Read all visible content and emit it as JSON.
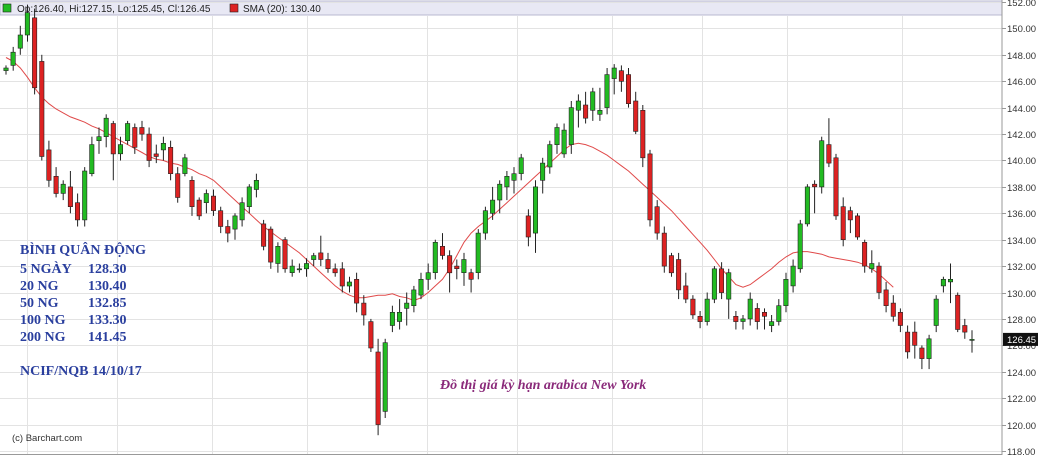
{
  "legend": {
    "ohlc_label": "Op:126.40, Hi:127.15, Lo:125.45, Cl:126.45",
    "sma_label": "SMA (20): 130.40",
    "candle_color": "#22bb22",
    "sma_color": "#dd2222"
  },
  "moving_averages": {
    "title": "BÌNH QUÂN ĐỘNG",
    "rows": [
      {
        "label": "5 NGÀY",
        "value": "128.30"
      },
      {
        "label": "20  NG",
        "value": "130.40"
      },
      {
        "label": "50  NG",
        "value": "132.85"
      },
      {
        "label": "100 NG",
        "value": "133.30"
      },
      {
        "label": "200 NG",
        "value": "141.45"
      }
    ],
    "source": "NCIF/NQB  14/10/17"
  },
  "caption": "Đồ thị giá kỳ hạn arabica New York",
  "credit": "(c) Barchart.com",
  "chart_data": {
    "type": "candlestick",
    "title": "",
    "ylim": [
      118,
      152
    ],
    "ticks": [
      "118.00",
      "120.00",
      "122.00",
      "124.00",
      "126.00",
      "128.00",
      "130.00",
      "132.00",
      "134.00",
      "136.00",
      "138.00",
      "140.00",
      "142.00",
      "144.00",
      "146.00",
      "148.00",
      "150.00",
      "152.00"
    ],
    "last_price_label": "126.45",
    "up_color": "#22bb22",
    "down_color": "#dd2222",
    "grid": true,
    "series": [
      {
        "name": "SMA (20)",
        "values": [
          147.8,
          147.5,
          147.0,
          146.3,
          145.5,
          144.8,
          144.3,
          143.9,
          143.6,
          143.3,
          143.1,
          142.9,
          142.6,
          142.4,
          142.1,
          141.8,
          141.5,
          141.2,
          140.9,
          140.6,
          140.3,
          140.1,
          140.0,
          139.8,
          139.7,
          139.5,
          139.3,
          139.0,
          138.8,
          138.5,
          138.0,
          137.5,
          137.0,
          136.5,
          136.0,
          135.5,
          135.0,
          134.6,
          134.2,
          133.8,
          133.4,
          133.0,
          132.5,
          132.0,
          131.5,
          131.0,
          130.5,
          130.1,
          129.8,
          129.6,
          129.6,
          129.7,
          129.8,
          129.8,
          129.9,
          129.7,
          129.6,
          129.4,
          129.6,
          130.0,
          130.5,
          131.0,
          131.8,
          132.8,
          133.8,
          134.5,
          135.0,
          135.4,
          135.8,
          136.3,
          136.8,
          137.3,
          137.8,
          138.3,
          138.8,
          139.3,
          139.8,
          140.3,
          140.8,
          141.2,
          141.3,
          141.2,
          141.0,
          140.7,
          140.4,
          140.0,
          139.6,
          139.2,
          138.7,
          138.2,
          137.7,
          137.2,
          136.7,
          136.2,
          135.6,
          135.0,
          134.4,
          133.8,
          133.2,
          132.5,
          131.8,
          131.2,
          130.6,
          130.4,
          130.6,
          131.0,
          131.4,
          131.8,
          132.3,
          132.7,
          133.0,
          133.1,
          133.1,
          133.0,
          132.9,
          132.7,
          132.6,
          132.5,
          132.4,
          132.3,
          132.1,
          131.8,
          131.4,
          130.9,
          130.4
        ]
      }
    ],
    "candles": [
      [
        146.8,
        147.2,
        146.5,
        147.0
      ],
      [
        147.2,
        148.6,
        146.8,
        148.2
      ],
      [
        148.5,
        150.2,
        148.0,
        149.5
      ],
      [
        149.5,
        151.8,
        149.0,
        151.2
      ],
      [
        150.8,
        151.5,
        145.0,
        145.5
      ],
      [
        147.5,
        148.0,
        140.0,
        140.3
      ],
      [
        140.8,
        141.5,
        138.0,
        138.5
      ],
      [
        138.8,
        139.5,
        137.2,
        137.5
      ],
      [
        137.5,
        138.5,
        137.0,
        138.2
      ],
      [
        138.0,
        139.2,
        136.0,
        136.5
      ],
      [
        136.8,
        137.5,
        135.0,
        135.5
      ],
      [
        135.5,
        139.5,
        135.0,
        139.2
      ],
      [
        139.0,
        141.8,
        138.8,
        141.2
      ],
      [
        141.5,
        142.5,
        140.5,
        141.8
      ],
      [
        141.8,
        143.5,
        141.0,
        143.2
      ],
      [
        142.8,
        143.0,
        138.5,
        140.5
      ],
      [
        140.5,
        141.8,
        140.0,
        141.2
      ],
      [
        141.5,
        143.0,
        141.2,
        142.8
      ],
      [
        142.5,
        142.8,
        140.5,
        141.0
      ],
      [
        142.5,
        143.0,
        141.5,
        142.0
      ],
      [
        142.0,
        142.5,
        139.5,
        140.0
      ],
      [
        140.5,
        141.2,
        139.8,
        140.3
      ],
      [
        140.8,
        141.8,
        140.0,
        141.3
      ],
      [
        141.0,
        141.5,
        138.5,
        139.0
      ],
      [
        139.0,
        139.5,
        136.8,
        137.2
      ],
      [
        139.0,
        140.5,
        138.8,
        140.2
      ],
      [
        138.5,
        138.8,
        135.8,
        136.5
      ],
      [
        137.0,
        137.2,
        135.5,
        135.8
      ],
      [
        136.8,
        137.8,
        136.0,
        137.5
      ],
      [
        137.3,
        137.8,
        135.8,
        136.2
      ],
      [
        136.2,
        136.5,
        134.5,
        135.0
      ],
      [
        135.0,
        135.5,
        133.8,
        134.5
      ],
      [
        134.8,
        136.0,
        134.0,
        135.8
      ],
      [
        135.5,
        137.2,
        135.0,
        136.8
      ],
      [
        136.5,
        138.2,
        136.0,
        138.0
      ],
      [
        137.8,
        139.0,
        137.2,
        138.5
      ],
      [
        135.2,
        135.5,
        133.2,
        133.5
      ],
      [
        134.8,
        135.0,
        131.8,
        132.3
      ],
      [
        132.2,
        133.8,
        131.5,
        133.5
      ],
      [
        134.0,
        134.2,
        131.5,
        131.8
      ],
      [
        131.5,
        132.5,
        131.2,
        132.0
      ],
      [
        131.8,
        132.2,
        131.5,
        131.8
      ],
      [
        131.8,
        132.6,
        131.2,
        132.2
      ],
      [
        132.5,
        133.0,
        132.0,
        132.8
      ],
      [
        133.0,
        134.3,
        132.0,
        132.5
      ],
      [
        132.5,
        133.0,
        131.5,
        131.8
      ],
      [
        131.8,
        132.2,
        131.2,
        131.5
      ],
      [
        131.8,
        132.3,
        130.0,
        130.5
      ],
      [
        130.5,
        131.2,
        130.0,
        130.8
      ],
      [
        131.0,
        131.5,
        128.5,
        129.2
      ],
      [
        129.2,
        129.8,
        127.5,
        128.3
      ],
      [
        127.8,
        128.0,
        125.5,
        125.8
      ],
      [
        125.5,
        126.5,
        119.2,
        120.0
      ],
      [
        121.0,
        126.5,
        120.5,
        126.2
      ],
      [
        127.5,
        129.0,
        127.0,
        128.5
      ],
      [
        127.8,
        129.5,
        127.2,
        128.5
      ],
      [
        128.8,
        130.0,
        127.5,
        129.2
      ],
      [
        129.0,
        130.5,
        128.5,
        130.2
      ],
      [
        129.8,
        131.5,
        129.5,
        131.0
      ],
      [
        131.0,
        132.2,
        130.2,
        131.5
      ],
      [
        131.5,
        134.0,
        131.0,
        133.8
      ],
      [
        133.5,
        134.5,
        132.5,
        132.8
      ],
      [
        132.8,
        133.2,
        130.0,
        131.5
      ],
      [
        132.0,
        132.5,
        131.0,
        131.8
      ],
      [
        131.5,
        133.0,
        130.5,
        132.5
      ],
      [
        131.5,
        131.8,
        130.0,
        131.0
      ],
      [
        131.5,
        134.8,
        131.0,
        134.5
      ],
      [
        134.5,
        136.5,
        134.0,
        136.2
      ],
      [
        136.0,
        138.0,
        135.5,
        137.0
      ],
      [
        137.0,
        138.5,
        136.0,
        138.2
      ],
      [
        138.0,
        139.2,
        137.0,
        138.8
      ],
      [
        138.5,
        139.5,
        137.5,
        139.0
      ],
      [
        139.0,
        140.5,
        138.5,
        140.2
      ],
      [
        135.8,
        136.3,
        133.5,
        134.2
      ],
      [
        134.5,
        138.5,
        133.0,
        138.0
      ],
      [
        138.5,
        140.2,
        137.5,
        139.8
      ],
      [
        139.5,
        141.5,
        139.0,
        141.2
      ],
      [
        141.2,
        142.8,
        140.5,
        142.5
      ],
      [
        140.5,
        142.8,
        140.2,
        142.3
      ],
      [
        141.2,
        144.5,
        140.5,
        144.0
      ],
      [
        143.8,
        145.0,
        142.5,
        144.5
      ],
      [
        144.2,
        145.2,
        142.8,
        143.2
      ],
      [
        143.8,
        145.5,
        143.0,
        145.2
      ],
      [
        143.5,
        145.5,
        143.0,
        143.8
      ],
      [
        144.0,
        147.0,
        143.5,
        146.5
      ],
      [
        146.2,
        147.3,
        145.0,
        147.0
      ],
      [
        146.8,
        147.2,
        145.2,
        146.0
      ],
      [
        146.5,
        147.0,
        144.0,
        144.3
      ],
      [
        144.5,
        145.2,
        142.0,
        142.2
      ],
      [
        143.8,
        144.2,
        139.5,
        140.2
      ],
      [
        140.5,
        140.8,
        135.0,
        135.5
      ],
      [
        136.5,
        137.0,
        134.0,
        134.5
      ],
      [
        134.5,
        135.0,
        131.5,
        132.0
      ],
      [
        132.8,
        133.0,
        131.2,
        131.5
      ],
      [
        132.5,
        133.0,
        129.5,
        130.2
      ],
      [
        130.5,
        131.5,
        129.2,
        129.5
      ],
      [
        129.5,
        129.8,
        128.0,
        128.3
      ],
      [
        128.2,
        128.6,
        127.3,
        127.8
      ],
      [
        127.8,
        130.0,
        127.5,
        129.5
      ],
      [
        129.5,
        132.0,
        129.2,
        131.8
      ],
      [
        131.8,
        132.3,
        129.5,
        130.0
      ],
      [
        129.5,
        131.8,
        128.0,
        131.5
      ],
      [
        128.2,
        128.6,
        127.2,
        127.8
      ],
      [
        127.8,
        128.3,
        127.2,
        128.0
      ],
      [
        128.0,
        130.0,
        127.5,
        129.5
      ],
      [
        128.8,
        129.2,
        127.2,
        127.8
      ],
      [
        128.5,
        128.8,
        127.2,
        128.2
      ],
      [
        127.5,
        128.3,
        127.0,
        127.8
      ],
      [
        127.8,
        129.5,
        127.5,
        129.0
      ],
      [
        129.0,
        131.5,
        128.5,
        131.0
      ],
      [
        130.5,
        132.5,
        130.0,
        132.0
      ],
      [
        131.8,
        135.5,
        131.5,
        135.2
      ],
      [
        135.2,
        138.2,
        135.0,
        138.0
      ],
      [
        138.2,
        138.5,
        136.0,
        138.0
      ],
      [
        138.0,
        141.8,
        137.5,
        141.5
      ],
      [
        141.2,
        143.2,
        139.5,
        139.8
      ],
      [
        140.2,
        140.5,
        135.5,
        135.8
      ],
      [
        136.5,
        137.2,
        133.5,
        134.0
      ],
      [
        136.2,
        136.5,
        134.5,
        135.5
      ],
      [
        135.8,
        136.0,
        134.0,
        134.2
      ],
      [
        133.8,
        134.0,
        131.5,
        132.0
      ],
      [
        131.8,
        133.2,
        131.5,
        132.2
      ],
      [
        132.0,
        132.3,
        129.5,
        130.0
      ],
      [
        130.2,
        130.8,
        128.5,
        129.0
      ],
      [
        129.2,
        129.8,
        127.8,
        128.2
      ],
      [
        128.5,
        128.8,
        127.0,
        127.5
      ],
      [
        127.0,
        127.5,
        125.0,
        125.5
      ],
      [
        127.0,
        127.8,
        125.0,
        126.0
      ],
      [
        125.8,
        126.0,
        124.2,
        125.0
      ],
      [
        125.0,
        126.8,
        124.2,
        126.5
      ],
      [
        127.5,
        129.8,
        127.0,
        129.5
      ],
      [
        130.5,
        131.2,
        130.0,
        131.0
      ],
      [
        130.8,
        132.2,
        129.2,
        131.0
      ],
      [
        129.8,
        130.0,
        127.0,
        127.2
      ],
      [
        127.5,
        128.0,
        126.5,
        127.0
      ],
      [
        126.4,
        127.15,
        125.45,
        126.45
      ]
    ]
  }
}
